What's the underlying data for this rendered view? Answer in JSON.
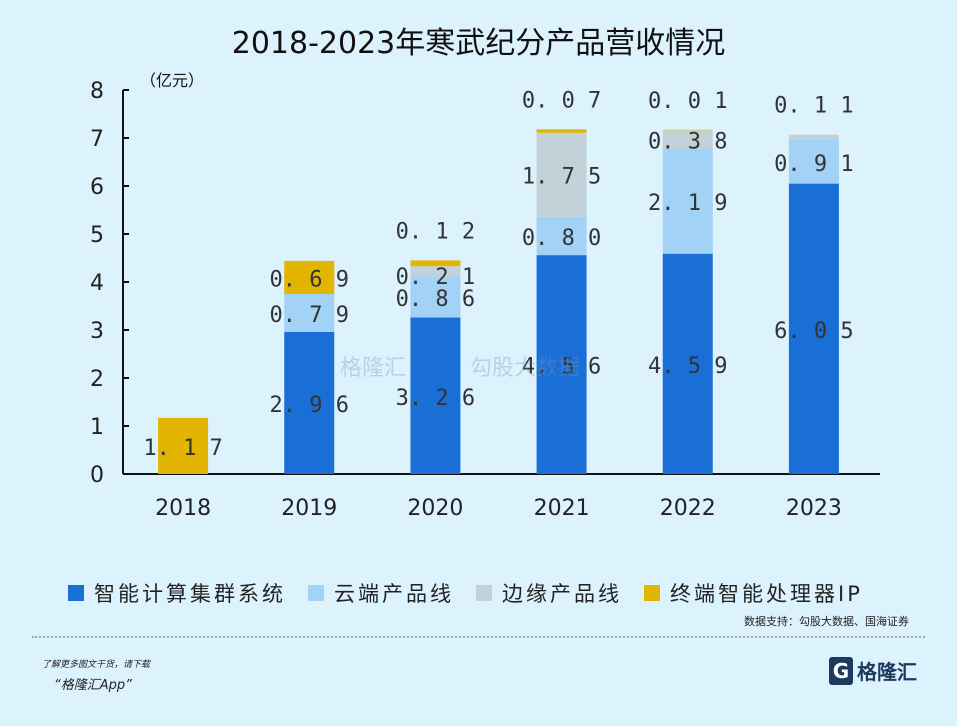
{
  "chart_data": {
    "type": "bar",
    "stacked": true,
    "title": "2018-2023年寒武纪分产品营收情况",
    "ylabel": "（亿元）",
    "ylim": [
      0,
      8
    ],
    "yticks": [
      0,
      1,
      2,
      3,
      4,
      5,
      6,
      7,
      8
    ],
    "categories": [
      "2018",
      "2019",
      "2020",
      "2021",
      "2022",
      "2023"
    ],
    "series": [
      {
        "name": "智能计算集群系统",
        "color": "#1a6fd6",
        "values": [
          null,
          2.96,
          3.26,
          4.56,
          4.59,
          6.05
        ],
        "labels": [
          "",
          "2.96",
          "3.26",
          "4.56",
          "4.59",
          "6.05"
        ]
      },
      {
        "name": "云端产品线",
        "color": "#a3d2f7",
        "values": [
          null,
          0.79,
          0.86,
          0.8,
          2.19,
          0.91
        ],
        "labels": [
          "",
          "0.79",
          "0.86",
          "0.80",
          "2.19",
          "0.91"
        ]
      },
      {
        "name": "边缘产品线",
        "color": "#c3d2d9",
        "values": [
          null,
          null,
          0.21,
          1.75,
          0.38,
          0.11
        ],
        "labels": [
          "",
          "",
          "0.21",
          "1.75",
          "0.38",
          "0.11"
        ]
      },
      {
        "name": "终端智能处理器IP",
        "color": "#e2b500",
        "values": [
          1.17,
          0.69,
          0.12,
          0.07,
          0.01,
          null
        ],
        "labels": [
          "1.17",
          "0.69",
          "0.12",
          "0.07",
          "0.01",
          ""
        ]
      }
    ],
    "legend_position": "bottom",
    "grid": false
  },
  "source": "数据支持：勾股大数据、国海证券",
  "footer": {
    "promo_line1": "了解更多图文干货，请下载",
    "promo_line2": "“格隆汇App”",
    "logo_text": "格隆汇",
    "logo_letter": "G"
  },
  "watermarks": [
    "格隆汇",
    "勾股大数据"
  ]
}
